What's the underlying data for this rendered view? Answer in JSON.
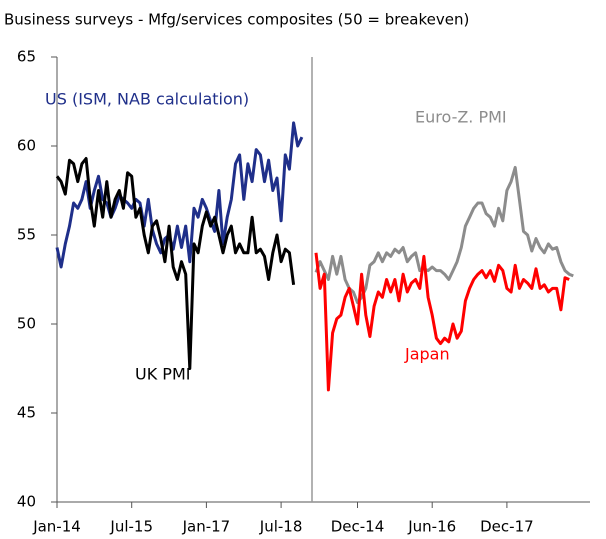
{
  "title": "Business surveys - Mfg/services composites (50 = breakeven)",
  "chart_data": [
    {
      "type": "line",
      "ylim": [
        40,
        65
      ],
      "yticks": [
        40,
        45,
        50,
        55,
        60,
        65
      ],
      "categories": [
        "Jan-14",
        null,
        null,
        null,
        null,
        null,
        null,
        null,
        null,
        null,
        null,
        null,
        null,
        null,
        null,
        null,
        null,
        null,
        "Jul-15",
        null,
        null,
        null,
        null,
        null,
        null,
        null,
        null,
        null,
        null,
        null,
        null,
        null,
        null,
        null,
        null,
        null,
        "Jan-17",
        null,
        null,
        null,
        null,
        null,
        null,
        null,
        null,
        null,
        null,
        null,
        null,
        null,
        null,
        null,
        null,
        null,
        "Jul-18",
        null,
        null,
        null,
        null,
        null
      ],
      "series": [
        {
          "name": "US (ISM, NAB calculation)",
          "color": "#1f2f8a",
          "values": [
            54.3,
            53.2,
            54.5,
            55.5,
            56.8,
            56.5,
            57.0,
            58.0,
            56.5,
            57.5,
            58.3,
            57.0,
            56.8,
            56.0,
            56.5,
            57.2,
            57.0,
            56.8,
            56.5,
            57.0,
            56.8,
            55.5,
            57.0,
            55.3,
            54.5,
            54.0,
            54.8,
            55.0,
            54.2,
            55.5,
            54.3,
            55.5,
            53.5,
            56.5,
            56.0,
            57.0,
            56.5,
            55.8,
            55.2,
            57.5,
            54.5,
            56.0,
            57.0,
            59.0,
            59.5,
            57.0,
            59.0,
            58.0,
            59.8,
            59.5,
            58.0,
            59.2,
            57.5,
            58.2,
            55.8,
            59.5,
            58.7,
            61.3,
            60.0,
            60.5
          ]
        },
        {
          "name": "UK PMI",
          "color": "#000000",
          "values": [
            58.3,
            58.0,
            57.3,
            59.2,
            59.0,
            58.0,
            59.0,
            59.3,
            57.0,
            55.5,
            57.5,
            56.0,
            58.0,
            56.0,
            57.0,
            57.5,
            56.5,
            58.5,
            58.3,
            56.0,
            56.5,
            55.0,
            54.0,
            55.5,
            55.8,
            54.8,
            53.5,
            55.5,
            53.2,
            52.5,
            53.5,
            52.8,
            47.5,
            54.5,
            54.0,
            55.5,
            56.3,
            55.5,
            56.0,
            55.0,
            54.0,
            55.0,
            55.5,
            54.0,
            54.5,
            54.0,
            54.0,
            56.0,
            54.0,
            54.2,
            53.8,
            52.5,
            54.0,
            55.0,
            53.5,
            54.2,
            54.0,
            52.2,
            null,
            null
          ]
        }
      ]
    },
    {
      "type": "line",
      "ylim": [
        40,
        65
      ],
      "categories": [
        null,
        null,
        null,
        null,
        null,
        null,
        null,
        null,
        null,
        null,
        "Dec-14",
        null,
        null,
        null,
        null,
        null,
        null,
        null,
        null,
        null,
        null,
        null,
        null,
        null,
        null,
        null,
        null,
        null,
        "Jun-16",
        null,
        null,
        null,
        null,
        null,
        null,
        null,
        null,
        null,
        null,
        null,
        null,
        null,
        null,
        null,
        null,
        null,
        "Dec-17",
        null,
        null,
        null,
        null,
        null,
        null,
        null,
        null,
        null,
        null,
        null,
        null,
        null,
        null,
        null,
        null
      ],
      "series": [
        {
          "name": "Euro-Z. PMI",
          "color": "#8c8c8c",
          "values": [
            52.9,
            53.5,
            53.0,
            52.5,
            53.8,
            52.8,
            53.8,
            52.5,
            52.0,
            51.8,
            51.2,
            51.5,
            52.0,
            53.3,
            53.5,
            54.0,
            53.5,
            54.0,
            53.8,
            54.2,
            54.0,
            54.3,
            53.5,
            53.8,
            54.0,
            53.0,
            53.1,
            53.0,
            53.2,
            53.0,
            53.0,
            52.8,
            52.5,
            53.0,
            53.5,
            54.3,
            55.5,
            56.0,
            56.5,
            56.8,
            56.8,
            56.2,
            56.0,
            55.5,
            56.5,
            55.8,
            57.5,
            58.0,
            58.8,
            57.0,
            55.2,
            55.0,
            54.1,
            54.8,
            54.3,
            54.0,
            54.5,
            54.2,
            54.3,
            53.5,
            53.0,
            52.8,
            52.7
          ]
        },
        {
          "name": "Japan",
          "color": "#ff0000",
          "values": [
            54.0,
            52.0,
            52.8,
            46.3,
            49.5,
            50.3,
            50.5,
            51.5,
            52.0,
            51.0,
            50.0,
            52.8,
            50.5,
            49.3,
            51.0,
            51.8,
            51.5,
            52.5,
            51.8,
            52.5,
            51.3,
            52.8,
            51.8,
            52.3,
            52.5,
            52.0,
            53.8,
            51.5,
            50.5,
            49.2,
            48.9,
            49.2,
            49.0,
            50.0,
            49.2,
            49.6,
            51.3,
            52.0,
            52.5,
            52.8,
            53.0,
            52.6,
            53.0,
            52.4,
            53.3,
            53.0,
            52.0,
            51.8,
            53.3,
            52.0,
            52.5,
            52.3,
            52.0,
            53.1,
            52.0,
            52.2,
            51.8,
            52.0,
            52.0,
            50.8,
            52.6,
            52.5,
            null
          ]
        }
      ]
    }
  ]
}
